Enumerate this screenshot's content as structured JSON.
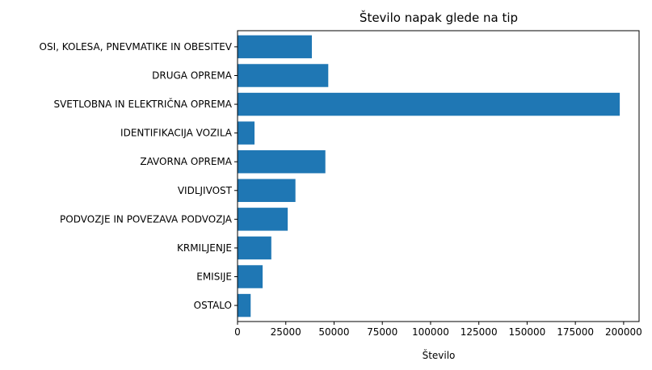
{
  "chart_data": {
    "type": "bar",
    "orientation": "horizontal",
    "title": "Število napak glede na tip",
    "xlabel": "Število",
    "ylabel": "",
    "xlim": [
      0,
      208000
    ],
    "xticks": [
      0,
      25000,
      50000,
      75000,
      100000,
      125000,
      150000,
      175000,
      200000
    ],
    "grid": false,
    "bar_color": "#1f77b4",
    "categories": [
      "OSI, KOLESA, PNEVMATIKE IN OBESITEV",
      "DRUGA OPREMA",
      "SVETLOBNA IN ELEKTRIČNA OPREMA",
      "IDENTIFIKACIJA VOZILA",
      "ZAVORNA OPREMA",
      "VIDLJIVOST",
      "PODVOZJE IN POVEZAVA PODVOZJA",
      "KRMILJENJE",
      "EMISIJE",
      "OSTALO"
    ],
    "values": [
      38500,
      47000,
      198000,
      8800,
      45500,
      30000,
      26000,
      17500,
      13000,
      6800
    ]
  }
}
